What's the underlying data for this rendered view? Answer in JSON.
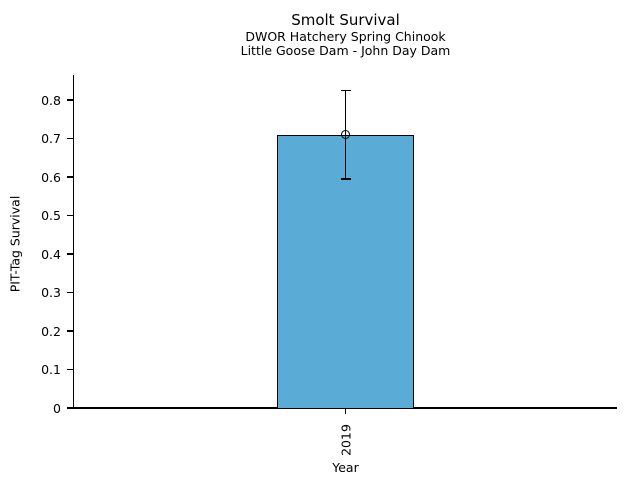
{
  "chart_data": {
    "type": "bar",
    "title": "Smolt Survival",
    "subtitle1": "DWOR Hatchery Spring Chinook",
    "subtitle2": "Little Goose Dam - John Day Dam",
    "xlabel": "Year",
    "ylabel": "PIT-Tag Survival",
    "categories": [
      "2019"
    ],
    "values": [
      0.71
    ],
    "error_bars": [
      {
        "lower": 0.595,
        "upper": 0.825
      }
    ],
    "marker": "open-circle",
    "ytick_values": [
      0,
      0.1,
      0.2,
      0.3,
      0.4,
      0.5,
      0.6,
      0.7,
      0.8
    ],
    "ytick_labels": [
      "0",
      "0.1",
      "0.2",
      "0.3",
      "0.4",
      "0.5",
      "0.6",
      "0.7",
      "0.8"
    ],
    "ylim": [
      0,
      0.865
    ],
    "grid": "off",
    "legend": "none",
    "bar_color": "#5aacd6",
    "edge_color": "#000000",
    "background_color": "#ffffff"
  }
}
